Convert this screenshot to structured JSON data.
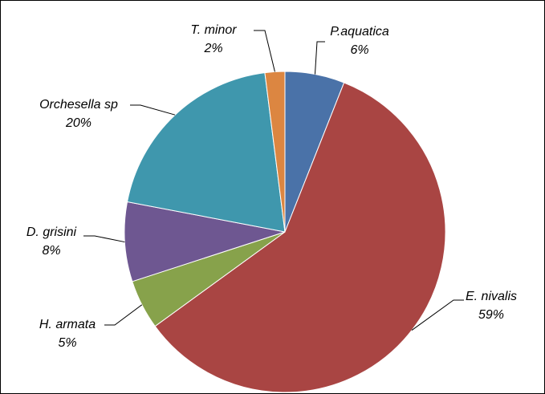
{
  "chart_data": {
    "type": "pie",
    "categories": [
      "P.aquatica",
      "E. nivalis",
      "H. armata",
      "D. grisini",
      "Orchesella sp",
      "T. minor"
    ],
    "values": [
      6,
      59,
      5,
      8,
      20,
      2
    ],
    "value_labels": [
      "6%",
      "59%",
      "5%",
      "8%",
      "20%",
      "2%"
    ],
    "colors": [
      "#4a72a8",
      "#a94543",
      "#87a24b",
      "#6e5791",
      "#3f97ad",
      "#dc8641"
    ]
  }
}
